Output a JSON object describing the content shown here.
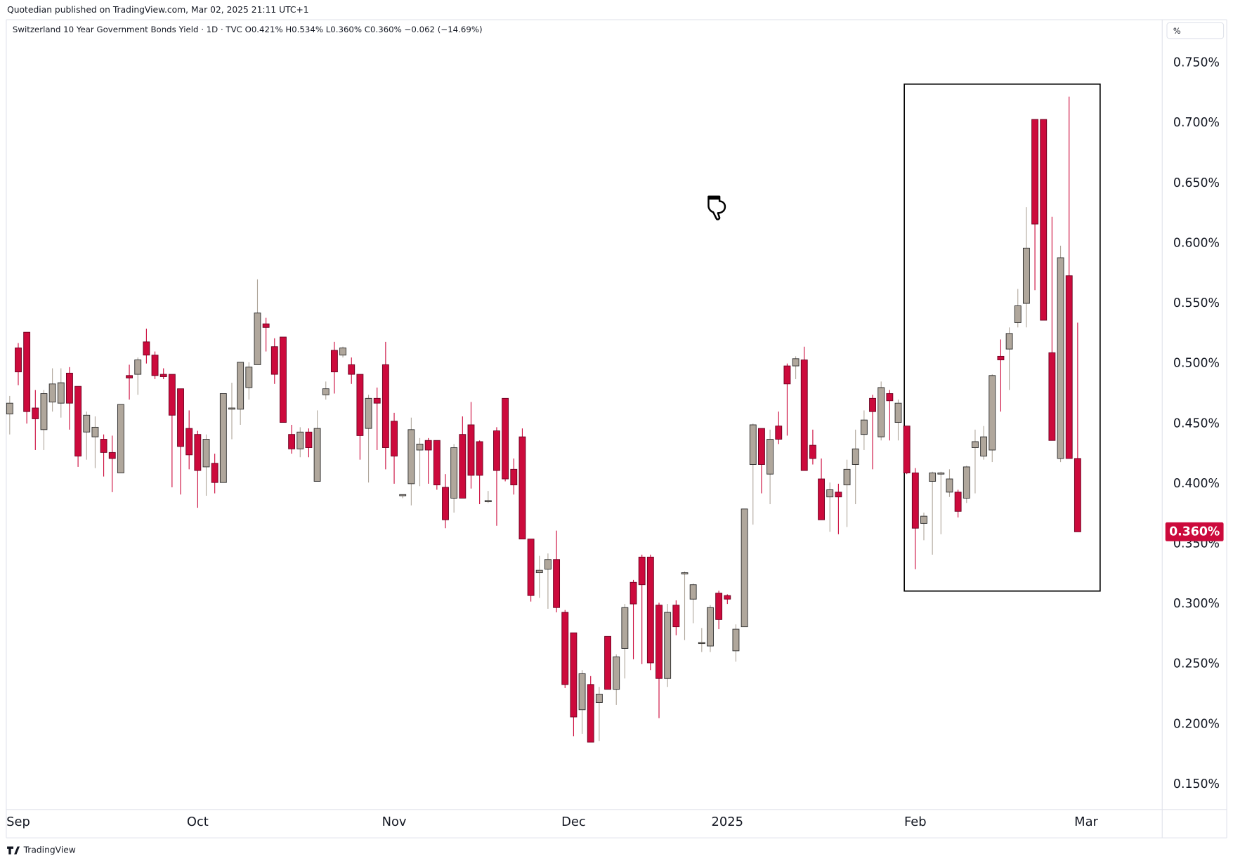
{
  "publisher": "Quotedian published on TradingView.com, Mar 02, 2025 21:11 UTC+1",
  "unit_button": "%",
  "footer": "TradingView",
  "chart_data": {
    "type": "candlestick",
    "title": "Switzerland 10 Year Government Bonds Yield · 1D · TVC  O0.421%  H0.534%  L0.360%  C0.360%  −0.062 (−14.69%)",
    "up_color": "#b0a79c",
    "down_color": "#cc0a3c",
    "open": [
      0.458,
      0.513,
      0.526,
      0.463,
      0.445,
      0.468,
      0.467,
      0.492,
      0.481,
      0.443,
      0.439,
      0.437,
      0.426,
      0.409,
      0.49,
      0.491,
      0.518,
      0.507,
      0.491,
      0.491,
      0.479,
      0.446,
      0.441,
      0.414,
      0.417,
      0.401,
      0.462,
      0.462,
      0.48,
      0.499,
      0.533,
      0.514,
      0.522,
      0.441,
      0.429,
      0.443,
      0.402,
      0.474,
      0.511,
      0.507,
      0.499,
      0.491,
      0.446,
      0.471,
      0.499,
      0.452,
      0.39,
      0.4,
      0.428,
      0.436,
      0.436,
      0.397,
      0.388,
      0.441,
      0.449,
      0.435,
      0.385,
      0.444,
      0.471,
      0.412,
      0.439,
      0.354,
      0.326,
      0.329,
      0.337,
      0.293,
      0.276,
      0.212,
      0.233,
      0.218,
      0.273,
      0.229,
      0.263,
      0.318,
      0.339,
      0.339,
      0.299,
      0.238,
      0.299,
      0.325,
      0.304,
      0.267,
      0.265,
      0.309,
      0.307,
      0.261,
      0.281,
      0.416,
      0.446,
      0.408,
      0.448,
      0.498,
      0.498,
      0.503,
      0.432,
      0.404,
      0.389,
      0.393,
      0.399,
      0.416,
      0.441,
      0.471,
      0.439,
      0.475,
      0.451,
      0.448,
      0.409,
      0.367,
      0.402,
      0.408,
      0.393,
      0.393,
      0.388,
      0.43,
      0.423,
      0.428,
      0.506,
      0.512,
      0.534,
      0.55,
      0.703,
      0.703,
      0.509,
      0.421,
      0.573,
      0.421
    ],
    "high": [
      0.473,
      0.517,
      0.526,
      0.478,
      0.478,
      0.496,
      0.496,
      0.497,
      0.481,
      0.46,
      0.456,
      0.441,
      0.44,
      0.466,
      0.499,
      0.505,
      0.529,
      0.51,
      0.496,
      0.491,
      0.479,
      0.461,
      0.444,
      0.441,
      0.425,
      0.475,
      0.484,
      0.501,
      0.501,
      0.57,
      0.538,
      0.521,
      0.522,
      0.449,
      0.447,
      0.446,
      0.461,
      0.485,
      0.518,
      0.514,
      0.505,
      0.491,
      0.474,
      0.48,
      0.518,
      0.459,
      0.391,
      0.455,
      0.438,
      0.438,
      0.436,
      0.408,
      0.433,
      0.456,
      0.468,
      0.436,
      0.394,
      0.447,
      0.471,
      0.421,
      0.446,
      0.354,
      0.34,
      0.342,
      0.361,
      0.295,
      0.276,
      0.245,
      0.24,
      0.231,
      0.273,
      0.258,
      0.3,
      0.32,
      0.341,
      0.341,
      0.301,
      0.3,
      0.303,
      0.327,
      0.317,
      0.28,
      0.299,
      0.311,
      0.308,
      0.283,
      0.379,
      0.45,
      0.446,
      0.445,
      0.46,
      0.5,
      0.506,
      0.514,
      0.445,
      0.421,
      0.401,
      0.4,
      0.42,
      0.445,
      0.461,
      0.474,
      0.485,
      0.478,
      0.47,
      0.448,
      0.413,
      0.376,
      0.41,
      0.41,
      0.412,
      0.395,
      0.415,
      0.445,
      0.448,
      0.491,
      0.52,
      0.53,
      0.562,
      0.63,
      0.703,
      0.703,
      0.622,
      0.598,
      0.722,
      0.534
    ],
    "low": [
      0.441,
      0.482,
      0.45,
      0.428,
      0.428,
      0.46,
      0.455,
      0.445,
      0.414,
      0.42,
      0.413,
      0.406,
      0.393,
      0.409,
      0.47,
      0.474,
      0.5,
      0.487,
      0.487,
      0.397,
      0.391,
      0.412,
      0.38,
      0.39,
      0.392,
      0.401,
      0.437,
      0.449,
      0.47,
      0.499,
      0.51,
      0.483,
      0.451,
      0.425,
      0.422,
      0.422,
      0.402,
      0.47,
      0.475,
      0.505,
      0.483,
      0.42,
      0.401,
      0.428,
      0.412,
      0.4,
      0.388,
      0.382,
      0.398,
      0.4,
      0.395,
      0.363,
      0.376,
      0.388,
      0.396,
      0.383,
      0.384,
      0.365,
      0.402,
      0.391,
      0.354,
      0.302,
      0.305,
      0.296,
      0.293,
      0.23,
      0.19,
      0.192,
      0.185,
      0.186,
      0.229,
      0.216,
      0.238,
      0.254,
      0.25,
      0.245,
      0.205,
      0.231,
      0.274,
      0.27,
      0.284,
      0.26,
      0.26,
      0.279,
      0.3,
      0.252,
      0.281,
      0.366,
      0.392,
      0.383,
      0.433,
      0.44,
      0.487,
      0.411,
      0.416,
      0.37,
      0.36,
      0.358,
      0.364,
      0.383,
      0.428,
      0.412,
      0.436,
      0.436,
      0.436,
      0.408,
      0.329,
      0.353,
      0.341,
      0.358,
      0.389,
      0.372,
      0.384,
      0.392,
      0.42,
      0.418,
      0.46,
      0.478,
      0.53,
      0.53,
      0.561,
      0.536,
      0.436,
      0.418,
      0.421,
      0.36
    ],
    "close": [
      0.467,
      0.493,
      0.46,
      0.454,
      0.475,
      0.483,
      0.484,
      0.467,
      0.423,
      0.457,
      0.447,
      0.426,
      0.421,
      0.466,
      0.488,
      0.503,
      0.507,
      0.49,
      0.489,
      0.457,
      0.431,
      0.424,
      0.411,
      0.437,
      0.401,
      0.475,
      0.463,
      0.501,
      0.497,
      0.542,
      0.53,
      0.491,
      0.451,
      0.429,
      0.443,
      0.43,
      0.446,
      0.479,
      0.493,
      0.513,
      0.491,
      0.44,
      0.471,
      0.467,
      0.43,
      0.423,
      0.391,
      0.445,
      0.433,
      0.428,
      0.399,
      0.37,
      0.43,
      0.388,
      0.407,
      0.407,
      0.386,
      0.411,
      0.404,
      0.399,
      0.354,
      0.307,
      0.328,
      0.337,
      0.297,
      0.233,
      0.206,
      0.242,
      0.185,
      0.225,
      0.229,
      0.256,
      0.297,
      0.3,
      0.316,
      0.251,
      0.238,
      0.293,
      0.281,
      0.326,
      0.316,
      0.268,
      0.297,
      0.287,
      0.304,
      0.279,
      0.379,
      0.449,
      0.416,
      0.437,
      0.437,
      0.483,
      0.504,
      0.411,
      0.421,
      0.37,
      0.395,
      0.389,
      0.412,
      0.429,
      0.453,
      0.46,
      0.48,
      0.469,
      0.467,
      0.409,
      0.363,
      0.373,
      0.409,
      0.409,
      0.404,
      0.377,
      0.414,
      0.435,
      0.439,
      0.49,
      0.503,
      0.525,
      0.548,
      0.596,
      0.616,
      0.536,
      0.436,
      0.588,
      0.421,
      0.36
    ],
    "last_label": "0.360%",
    "ylim": [
      0.129,
      0.786
    ],
    "yticks": [
      {
        "value": 0.15,
        "label": "0.150%"
      },
      {
        "value": 0.2,
        "label": "0.200%"
      },
      {
        "value": 0.25,
        "label": "0.250%"
      },
      {
        "value": 0.3,
        "label": "0.300%"
      },
      {
        "value": 0.35,
        "label": "0.350%"
      },
      {
        "value": 0.4,
        "label": "0.400%"
      },
      {
        "value": 0.45,
        "label": "0.450%"
      },
      {
        "value": 0.5,
        "label": "0.500%"
      },
      {
        "value": 0.55,
        "label": "0.550%"
      },
      {
        "value": 0.6,
        "label": "0.600%"
      },
      {
        "value": 0.65,
        "label": "0.650%"
      },
      {
        "value": 0.7,
        "label": "0.700%"
      },
      {
        "value": 0.75,
        "label": "0.750%"
      }
    ],
    "xlim": [
      -0.4,
      134.9
    ],
    "xticks": [
      {
        "value": 1,
        "label": "Sep"
      },
      {
        "value": 22,
        "label": "Oct"
      },
      {
        "value": 45,
        "label": "Nov"
      },
      {
        "value": 66,
        "label": "Dec"
      },
      {
        "value": 84,
        "label": "2025"
      },
      {
        "value": 106,
        "label": "Feb"
      },
      {
        "value": 126,
        "label": "Mar"
      }
    ]
  }
}
